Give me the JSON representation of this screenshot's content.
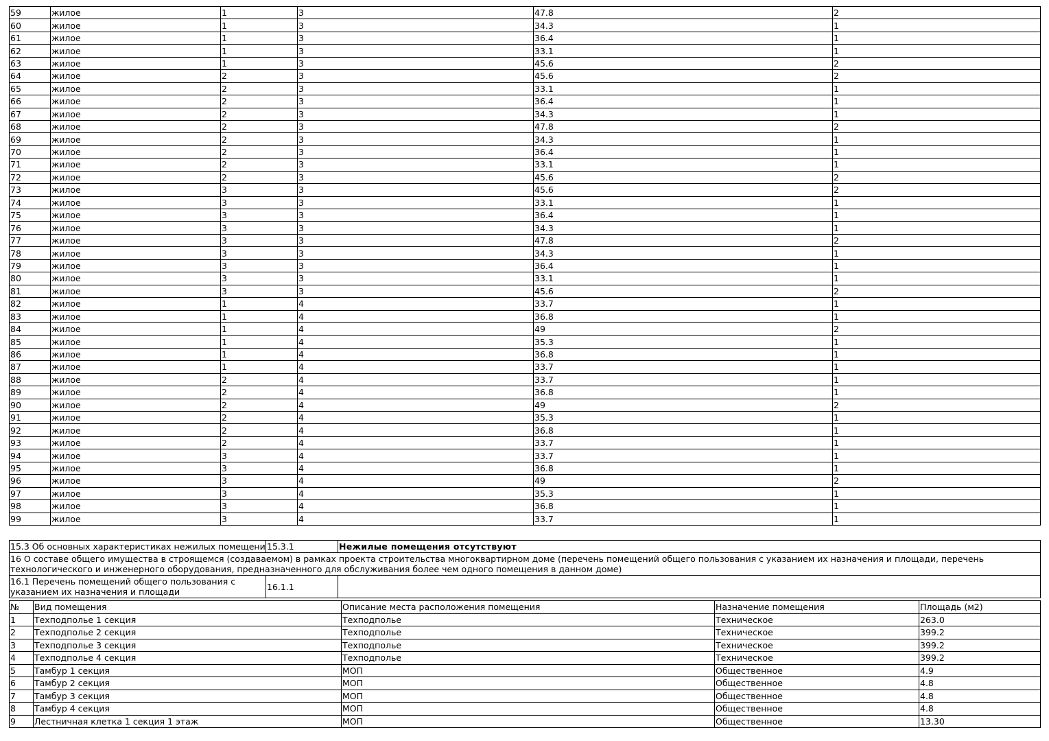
{
  "apartments": [
    [
      "59",
      "жилое",
      "1",
      "3",
      "47.8",
      "2"
    ],
    [
      "60",
      "жилое",
      "1",
      "3",
      "34.3",
      "1"
    ],
    [
      "61",
      "жилое",
      "1",
      "3",
      "36.4",
      "1"
    ],
    [
      "62",
      "жилое",
      "1",
      "3",
      "33.1",
      "1"
    ],
    [
      "63",
      "жилое",
      "1",
      "3",
      "45.6",
      "2"
    ],
    [
      "64",
      "жилое",
      "2",
      "3",
      "45.6",
      "2"
    ],
    [
      "65",
      "жилое",
      "2",
      "3",
      "33.1",
      "1"
    ],
    [
      "66",
      "жилое",
      "2",
      "3",
      "36.4",
      "1"
    ],
    [
      "67",
      "жилое",
      "2",
      "3",
      "34.3",
      "1"
    ],
    [
      "68",
      "жилое",
      "2",
      "3",
      "47.8",
      "2"
    ],
    [
      "69",
      "жилое",
      "2",
      "3",
      "34.3",
      "1"
    ],
    [
      "70",
      "жилое",
      "2",
      "3",
      "36.4",
      "1"
    ],
    [
      "71",
      "жилое",
      "2",
      "3",
      "33.1",
      "1"
    ],
    [
      "72",
      "жилое",
      "2",
      "3",
      "45.6",
      "2"
    ],
    [
      "73",
      "жилое",
      "3",
      "3",
      "45.6",
      "2"
    ],
    [
      "74",
      "жилое",
      "3",
      "3",
      "33.1",
      "1"
    ],
    [
      "75",
      "жилое",
      "3",
      "3",
      "36.4",
      "1"
    ],
    [
      "76",
      "жилое",
      "3",
      "3",
      "34.3",
      "1"
    ],
    [
      "77",
      "жилое",
      "3",
      "3",
      "47.8",
      "2"
    ],
    [
      "78",
      "жилое",
      "3",
      "3",
      "34.3",
      "1"
    ],
    [
      "79",
      "жилое",
      "3",
      "3",
      "36.4",
      "1"
    ],
    [
      "80",
      "жилое",
      "3",
      "3",
      "33.1",
      "1"
    ],
    [
      "81",
      "жилое",
      "3",
      "3",
      "45.6",
      "2"
    ],
    [
      "82",
      "жилое",
      "1",
      "4",
      "33.7",
      "1"
    ],
    [
      "83",
      "жилое",
      "1",
      "4",
      "36.8",
      "1"
    ],
    [
      "84",
      "жилое",
      "1",
      "4",
      "49",
      "2"
    ],
    [
      "85",
      "жилое",
      "1",
      "4",
      "35.3",
      "1"
    ],
    [
      "86",
      "жилое",
      "1",
      "4",
      "36.8",
      "1"
    ],
    [
      "87",
      "жилое",
      "1",
      "4",
      "33.7",
      "1"
    ],
    [
      "88",
      "жилое",
      "2",
      "4",
      "33.7",
      "1"
    ],
    [
      "89",
      "жилое",
      "2",
      "4",
      "36.8",
      "1"
    ],
    [
      "90",
      "жилое",
      "2",
      "4",
      "49",
      "2"
    ],
    [
      "91",
      "жилое",
      "2",
      "4",
      "35.3",
      "1"
    ],
    [
      "92",
      "жилое",
      "2",
      "4",
      "36.8",
      "1"
    ],
    [
      "93",
      "жилое",
      "2",
      "4",
      "33.7",
      "1"
    ],
    [
      "94",
      "жилое",
      "3",
      "4",
      "33.7",
      "1"
    ],
    [
      "95",
      "жилое",
      "3",
      "4",
      "36.8",
      "1"
    ],
    [
      "96",
      "жилое",
      "3",
      "4",
      "49",
      "2"
    ],
    [
      "97",
      "жилое",
      "3",
      "4",
      "35.3",
      "1"
    ],
    [
      "98",
      "жилое",
      "3",
      "4",
      "36.8",
      "1"
    ],
    [
      "99",
      "жилое",
      "3",
      "4",
      "33.7",
      "1"
    ]
  ],
  "section_15_3": {
    "label": "15.3 Об основных характеристиках нежилых помещений",
    "code": "15.3.1",
    "value": "Нежилые помещения отсутствуют"
  },
  "section_16": {
    "label": "16 О составе общего имущества в строящемся (создаваемом) в рамках проекта строительства многоквартирном доме (перечень помещений общего пользования с указанием их назначения и площади, перечень технологического и инженерного оборудования, предназначенного для обслуживания более чем одного помещения в данном доме)"
  },
  "section_16_1": {
    "label": "16.1 Перечень помещений общего пользования с указанием их назначения и площади",
    "code": "16.1.1",
    "value": ""
  },
  "common_rooms": {
    "headers": [
      "№",
      "Вид помещения",
      "Описание места расположения помещения",
      "Назначение помещения",
      "Площадь (м2)"
    ],
    "rows": [
      [
        "1",
        "Техподполье 1 секция",
        "Техподполье",
        "Техническое",
        "263.0"
      ],
      [
        "2",
        "Техподполье 2 секция",
        "Техподполье",
        "Техническое",
        "399.2"
      ],
      [
        "3",
        "Техподполье 3 секция",
        "Техподполье",
        "Техническое",
        "399.2"
      ],
      [
        "4",
        "Техподполье 4 секция",
        "Техподполье",
        "Техническое",
        "399.2"
      ],
      [
        "5",
        "Тамбур 1 секция",
        "МОП",
        "Общественное",
        "4.9"
      ],
      [
        "6",
        "Тамбур 2 секция",
        "МОП",
        "Общественное",
        "4.8"
      ],
      [
        "7",
        "Тамбур 3 секция",
        "МОП",
        "Общественное",
        "4.8"
      ],
      [
        "8",
        "Тамбур 4 секция",
        "МОП",
        "Общественное",
        "4.8"
      ],
      [
        "9",
        "Лестничная клетка 1 секция 1 этаж",
        "МОП",
        "Общественное",
        "13.30"
      ]
    ]
  }
}
